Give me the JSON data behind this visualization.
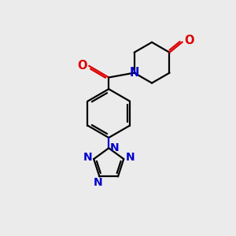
{
  "bg_color": "#ebebeb",
  "bond_color": "#000000",
  "N_color": "#0000cc",
  "O_color": "#dd0000",
  "lw": 1.6,
  "figsize": [
    3.0,
    3.0
  ],
  "dpi": 100,
  "xlim": [
    0,
    10
  ],
  "ylim": [
    0,
    10
  ]
}
